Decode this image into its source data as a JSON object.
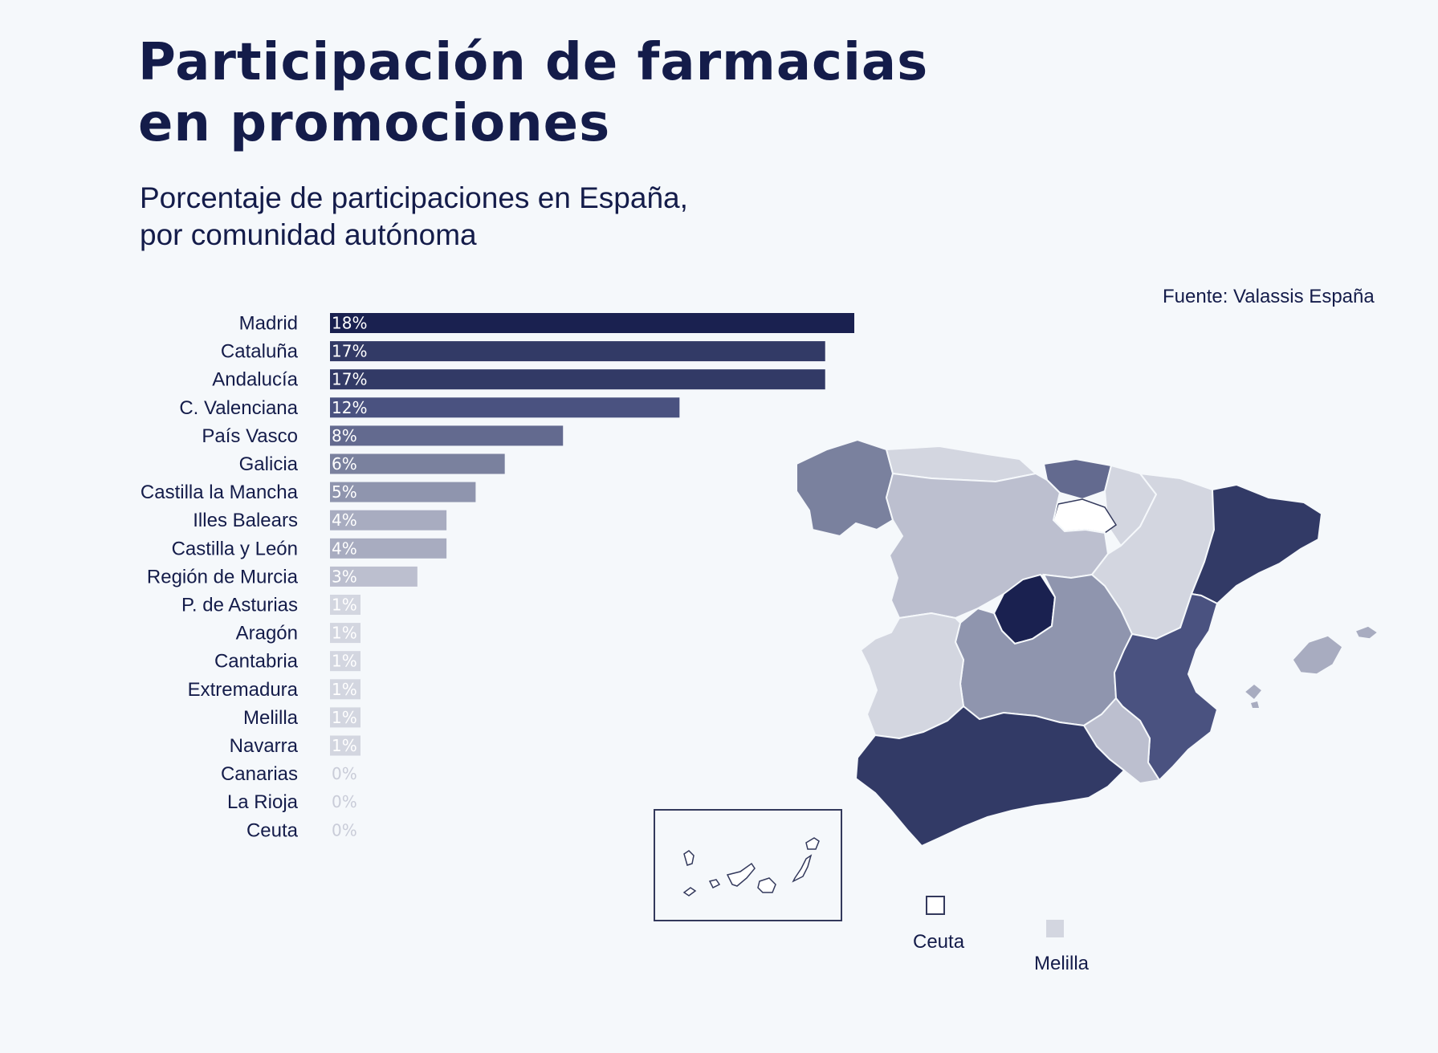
{
  "header": {
    "title_line1": "Participación de farmacias",
    "title_line2": "en promociones",
    "subtitle_line1": "Porcentaje de participaciones en España,",
    "subtitle_line2": "por comunidad autónoma",
    "source": "Fuente: Valassis España"
  },
  "legend": {
    "ceuta": "Ceuta",
    "melilla": "Melilla"
  },
  "colors": {
    "dark": "#1a2150",
    "level17": "#323a66",
    "level12": "#4a5280",
    "level8": "#636a8f",
    "level6": "#7a819e",
    "level5": "#8f95ae",
    "level4": "#a8acc0",
    "level3": "#bcbfcf",
    "level1": "#d3d6e0",
    "zero": "#ffffff"
  },
  "chart_data": {
    "type": "bar",
    "orientation": "horizontal",
    "categories": [
      "Madrid",
      "Cataluña",
      "Andalucía",
      "C. Valenciana",
      "País Vasco",
      "Galicia",
      "Castilla la Mancha",
      "Illes Balears",
      "Castilla y León",
      "Región de Murcia",
      "P. de Asturias",
      "Aragón",
      "Cantabria",
      "Extremadura",
      "Melilla",
      "Navarra",
      "Canarias",
      "La Rioja",
      "Ceuta"
    ],
    "values": [
      18,
      17,
      17,
      12,
      8,
      6,
      5,
      4,
      4,
      3,
      1,
      1,
      1,
      1,
      1,
      1,
      0,
      0,
      0
    ],
    "labels": [
      "18%",
      "17%",
      "17%",
      "12%",
      "8%",
      "6%",
      "5%",
      "4%",
      "4%",
      "3%",
      "1%",
      "1%",
      "1%",
      "1%",
      "1%",
      "1%",
      "0%",
      "0%",
      "0%"
    ],
    "xlim": [
      0,
      18
    ],
    "grid": false,
    "legend": "none"
  }
}
